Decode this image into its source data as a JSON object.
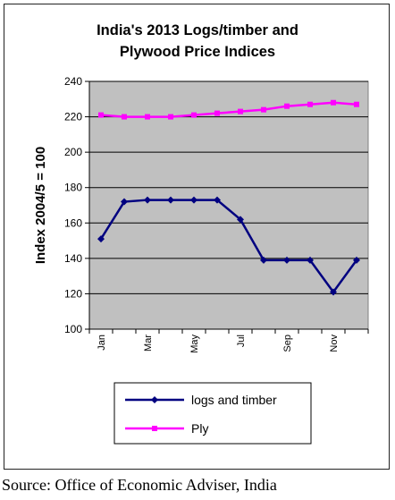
{
  "chart_data": {
    "type": "line",
    "title_line1": "India's 2013 Logs/timber and",
    "title_line2": "Plywood Price Indices",
    "xlabel": "",
    "ylabel": "Index 2004/5 = 100",
    "ylim": [
      100,
      240
    ],
    "yticks": [
      100,
      120,
      140,
      160,
      180,
      200,
      220,
      240
    ],
    "x": [
      "Jan",
      "Feb",
      "Mar",
      "Apr",
      "May",
      "Jun",
      "Jul",
      "Aug",
      "Sep",
      "Oct",
      "Nov",
      "Dec"
    ],
    "xtick_labels": [
      "Jan",
      "Mar",
      "May",
      "Jul",
      "Sep",
      "Nov"
    ],
    "grid": true,
    "legend_placement": "bottom",
    "series": [
      {
        "name": "logs and timber",
        "color": "#000080",
        "marker": "diamond",
        "values": [
          151,
          172,
          173,
          173,
          173,
          173,
          162,
          139,
          139,
          139,
          121,
          139
        ]
      },
      {
        "name": "Ply",
        "color": "#ff00ff",
        "marker": "square",
        "values": [
          221,
          220,
          220,
          220,
          221,
          222,
          223,
          224,
          226,
          227,
          228,
          227
        ]
      }
    ],
    "plot_background": "#c0c0c0"
  },
  "source": "Source: Office of Economic Adviser, India"
}
